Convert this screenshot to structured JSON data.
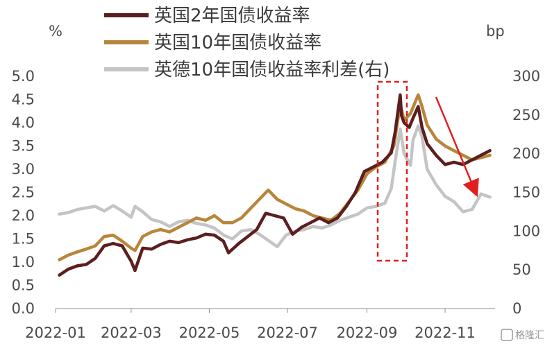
{
  "chart_data": {
    "type": "line",
    "left_unit": "%",
    "right_unit": "bp",
    "x_ticks": [
      "2022-01",
      "2022-03",
      "2022-05",
      "2022-07",
      "2022-09",
      "2022-11"
    ],
    "left_ticks": [
      "0.0",
      "0.5",
      "1.0",
      "1.5",
      "2.0",
      "2.5",
      "3.0",
      "3.5",
      "4.0",
      "4.5",
      "5.0"
    ],
    "right_ticks": [
      "0",
      "50",
      "100",
      "150",
      "200",
      "250",
      "300"
    ],
    "ylim_left": [
      0,
      5
    ],
    "ylim_right": [
      0,
      300
    ],
    "series": [
      {
        "name": "英国2年国债收益率",
        "axis": "left",
        "color": "#5c1e1e",
        "points": [
          [
            "2022-01-04",
            0.72
          ],
          [
            "2022-01-11",
            0.85
          ],
          [
            "2022-01-18",
            0.92
          ],
          [
            "2022-01-25",
            0.95
          ],
          [
            "2022-02-01",
            1.08
          ],
          [
            "2022-02-08",
            1.35
          ],
          [
            "2022-02-15",
            1.4
          ],
          [
            "2022-02-22",
            1.35
          ],
          [
            "2022-03-01",
            1.02
          ],
          [
            "2022-03-04",
            0.82
          ],
          [
            "2022-03-10",
            1.3
          ],
          [
            "2022-03-17",
            1.28
          ],
          [
            "2022-03-24",
            1.38
          ],
          [
            "2022-03-31",
            1.45
          ],
          [
            "2022-04-07",
            1.42
          ],
          [
            "2022-04-14",
            1.48
          ],
          [
            "2022-04-21",
            1.52
          ],
          [
            "2022-04-28",
            1.6
          ],
          [
            "2022-05-05",
            1.58
          ],
          [
            "2022-05-12",
            1.45
          ],
          [
            "2022-05-16",
            1.2
          ],
          [
            "2022-05-24",
            1.4
          ],
          [
            "2022-05-31",
            1.55
          ],
          [
            "2022-06-07",
            1.7
          ],
          [
            "2022-06-14",
            2.05
          ],
          [
            "2022-06-21",
            2.0
          ],
          [
            "2022-06-28",
            1.95
          ],
          [
            "2022-07-05",
            1.6
          ],
          [
            "2022-07-12",
            1.75
          ],
          [
            "2022-07-19",
            1.85
          ],
          [
            "2022-07-26",
            1.95
          ],
          [
            "2022-08-02",
            1.85
          ],
          [
            "2022-08-09",
            1.95
          ],
          [
            "2022-08-16",
            2.2
          ],
          [
            "2022-08-23",
            2.5
          ],
          [
            "2022-08-30",
            2.95
          ],
          [
            "2022-09-06",
            3.05
          ],
          [
            "2022-09-13",
            3.15
          ],
          [
            "2022-09-20",
            3.35
          ],
          [
            "2022-09-23",
            3.8
          ],
          [
            "2022-09-27",
            4.6
          ],
          [
            "2022-09-28",
            4.15
          ],
          [
            "2022-09-30",
            4.0
          ],
          [
            "2022-10-04",
            3.9
          ],
          [
            "2022-10-07",
            4.1
          ],
          [
            "2022-10-11",
            4.35
          ],
          [
            "2022-10-14",
            3.9
          ],
          [
            "2022-10-18",
            3.55
          ],
          [
            "2022-10-25",
            3.3
          ],
          [
            "2022-11-01",
            3.1
          ],
          [
            "2022-11-08",
            3.15
          ],
          [
            "2022-11-15",
            3.1
          ],
          [
            "2022-11-22",
            3.2
          ],
          [
            "2022-11-29",
            3.3
          ],
          [
            "2022-12-06",
            3.4
          ]
        ]
      },
      {
        "name": "英国10年国债收益率",
        "axis": "left",
        "color": "#b8863b",
        "points": [
          [
            "2022-01-04",
            1.05
          ],
          [
            "2022-01-11",
            1.15
          ],
          [
            "2022-01-18",
            1.22
          ],
          [
            "2022-01-25",
            1.28
          ],
          [
            "2022-02-01",
            1.35
          ],
          [
            "2022-02-08",
            1.55
          ],
          [
            "2022-02-15",
            1.58
          ],
          [
            "2022-02-22",
            1.45
          ],
          [
            "2022-03-01",
            1.3
          ],
          [
            "2022-03-04",
            1.25
          ],
          [
            "2022-03-10",
            1.55
          ],
          [
            "2022-03-17",
            1.65
          ],
          [
            "2022-03-24",
            1.7
          ],
          [
            "2022-03-31",
            1.65
          ],
          [
            "2022-04-07",
            1.75
          ],
          [
            "2022-04-14",
            1.85
          ],
          [
            "2022-04-21",
            1.95
          ],
          [
            "2022-04-28",
            1.9
          ],
          [
            "2022-05-05",
            2.0
          ],
          [
            "2022-05-12",
            1.85
          ],
          [
            "2022-05-19",
            1.85
          ],
          [
            "2022-05-26",
            1.95
          ],
          [
            "2022-06-02",
            2.15
          ],
          [
            "2022-06-09",
            2.35
          ],
          [
            "2022-06-16",
            2.55
          ],
          [
            "2022-06-23",
            2.35
          ],
          [
            "2022-06-30",
            2.25
          ],
          [
            "2022-07-07",
            2.15
          ],
          [
            "2022-07-14",
            2.1
          ],
          [
            "2022-07-21",
            2.0
          ],
          [
            "2022-07-28",
            1.95
          ],
          [
            "2022-08-04",
            1.9
          ],
          [
            "2022-08-11",
            2.05
          ],
          [
            "2022-08-18",
            2.3
          ],
          [
            "2022-08-25",
            2.55
          ],
          [
            "2022-09-01",
            2.9
          ],
          [
            "2022-09-08",
            3.05
          ],
          [
            "2022-09-15",
            3.15
          ],
          [
            "2022-09-22",
            3.5
          ],
          [
            "2022-09-27",
            4.4
          ],
          [
            "2022-09-30",
            4.05
          ],
          [
            "2022-10-05",
            4.2
          ],
          [
            "2022-10-11",
            4.6
          ],
          [
            "2022-10-14",
            4.35
          ],
          [
            "2022-10-18",
            3.95
          ],
          [
            "2022-10-25",
            3.65
          ],
          [
            "2022-11-01",
            3.5
          ],
          [
            "2022-11-08",
            3.4
          ],
          [
            "2022-11-15",
            3.3
          ],
          [
            "2022-11-22",
            3.2
          ],
          [
            "2022-11-29",
            3.25
          ],
          [
            "2022-12-06",
            3.3
          ]
        ]
      },
      {
        "name": "英德10年国债收益率利差(右)",
        "axis": "right",
        "color": "#c4c4c4",
        "points": [
          [
            "2022-01-04",
            122
          ],
          [
            "2022-01-11",
            124
          ],
          [
            "2022-01-18",
            128
          ],
          [
            "2022-01-25",
            130
          ],
          [
            "2022-02-01",
            132
          ],
          [
            "2022-02-08",
            126
          ],
          [
            "2022-02-15",
            133
          ],
          [
            "2022-02-22",
            126
          ],
          [
            "2022-03-01",
            118
          ],
          [
            "2022-03-04",
            132
          ],
          [
            "2022-03-10",
            125
          ],
          [
            "2022-03-17",
            115
          ],
          [
            "2022-03-24",
            112
          ],
          [
            "2022-03-31",
            106
          ],
          [
            "2022-04-07",
            112
          ],
          [
            "2022-04-14",
            114
          ],
          [
            "2022-04-21",
            110
          ],
          [
            "2022-04-28",
            108
          ],
          [
            "2022-05-05",
            104
          ],
          [
            "2022-05-12",
            95
          ],
          [
            "2022-05-19",
            90
          ],
          [
            "2022-05-26",
            100
          ],
          [
            "2022-06-02",
            102
          ],
          [
            "2022-06-09",
            96
          ],
          [
            "2022-06-16",
            88
          ],
          [
            "2022-06-23",
            80
          ],
          [
            "2022-06-30",
            95
          ],
          [
            "2022-07-07",
            100
          ],
          [
            "2022-07-14",
            102
          ],
          [
            "2022-07-21",
            106
          ],
          [
            "2022-07-28",
            104
          ],
          [
            "2022-08-04",
            108
          ],
          [
            "2022-08-11",
            114
          ],
          [
            "2022-08-18",
            118
          ],
          [
            "2022-08-25",
            122
          ],
          [
            "2022-09-01",
            130
          ],
          [
            "2022-09-08",
            132
          ],
          [
            "2022-09-15",
            136
          ],
          [
            "2022-09-20",
            155
          ],
          [
            "2022-09-23",
            190
          ],
          [
            "2022-09-27",
            232
          ],
          [
            "2022-09-30",
            200
          ],
          [
            "2022-10-05",
            185
          ],
          [
            "2022-10-07",
            218
          ],
          [
            "2022-10-11",
            236
          ],
          [
            "2022-10-14",
            222
          ],
          [
            "2022-10-18",
            180
          ],
          [
            "2022-10-25",
            160
          ],
          [
            "2022-11-01",
            145
          ],
          [
            "2022-11-08",
            138
          ],
          [
            "2022-11-15",
            125
          ],
          [
            "2022-11-22",
            128
          ],
          [
            "2022-11-29",
            148
          ],
          [
            "2022-12-06",
            144
          ]
        ]
      }
    ]
  },
  "annotations": {
    "box_color": "#e0201e",
    "arrow_color": "#e0201e"
  },
  "watermark": "格隆汇"
}
